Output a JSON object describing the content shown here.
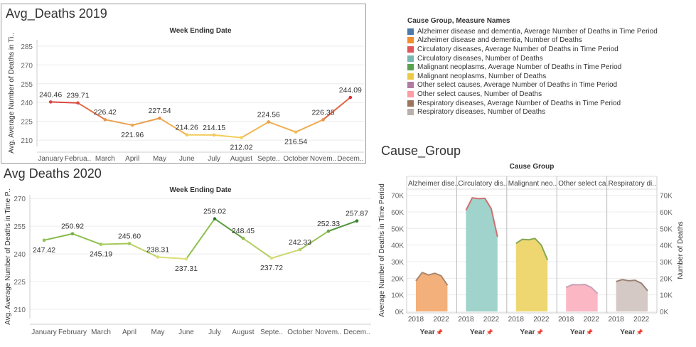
{
  "colors": {
    "text": "#333333",
    "axis": "#888888",
    "grid": "#ececec",
    "panel_border": "#999999"
  },
  "chart_data": [
    {
      "type": "line",
      "title": "Avg_Deaths 2019",
      "header": "Week Ending Date",
      "ylabel": "Avg. Average Number of Deaths in Ti..",
      "ylim": [
        205,
        290
      ],
      "yticks": [
        210,
        225,
        240,
        255,
        270,
        285
      ],
      "categories": [
        "January",
        "Februa..",
        "March",
        "April",
        "May",
        "June",
        "July",
        "August",
        "Septe..",
        "October",
        "Novem..",
        "Decem.."
      ],
      "values": [
        240.46,
        239.71,
        226.42,
        221.96,
        227.54,
        214.26,
        214.15,
        212.02,
        224.56,
        216.54,
        226.35,
        244.09
      ],
      "labels": [
        "240.46",
        "239.71",
        "226.42",
        "221.96",
        "227.54",
        "214.26",
        "214.15",
        "212.02",
        "224.56",
        "216.54",
        "226.35",
        "244.09"
      ],
      "color_low": "#f5d25a",
      "color_mid": "#e8904b",
      "color_high": "#d6303c"
    },
    {
      "type": "line",
      "title": "Avg Deaths 2020",
      "header": "Week Ending Date",
      "ylabel": "Avg. Average Number of Deaths in Time P..",
      "ylim": [
        205,
        272
      ],
      "yticks": [
        210,
        225,
        240,
        255,
        270
      ],
      "categories": [
        "January",
        "February",
        "March",
        "April",
        "May",
        "June",
        "July",
        "August",
        "Septe..",
        "October",
        "Novem..",
        "Decem.."
      ],
      "values": [
        247.42,
        250.92,
        245.19,
        245.6,
        238.31,
        237.31,
        259.02,
        248.45,
        237.72,
        242.33,
        252.33,
        257.87
      ],
      "labels": [
        "247.42",
        "250.92",
        "245.19",
        "245.60",
        "238.31",
        "237.31",
        "259.02",
        "248.45",
        "237.72",
        "242.33",
        "252.33",
        "257.87"
      ],
      "color_low": "#dfe07a",
      "color_mid": "#8ec04e",
      "color_high": "#2d7a30"
    },
    {
      "type": "area",
      "title": "Cause_Group",
      "header": "Cause Group",
      "ylabel_left": "Average Number of Deaths in Time Period",
      "ylabel_right": "Number of Deaths",
      "ylim": [
        0,
        72000
      ],
      "yticks": [
        0,
        10000,
        20000,
        30000,
        40000,
        50000,
        60000,
        70000
      ],
      "ytick_labels": [
        "0K",
        "10K",
        "20K",
        "30K",
        "40K",
        "50K",
        "60K",
        "70K"
      ],
      "x": [
        2018,
        2019,
        2020,
        2021,
        2022,
        2023
      ],
      "xtick_labels": [
        "2018",
        "2022"
      ],
      "xlabel": "Year",
      "pin_icon": "📌",
      "panels": [
        {
          "name": "Alzheimer dise..",
          "fill": "#f4b07a",
          "line": "#a98872",
          "values": [
            18500,
            23500,
            22000,
            23000,
            21500,
            15800
          ]
        },
        {
          "name": "Circulatory dis..",
          "fill": "#9fd3cc",
          "line": "#d06f6f",
          "values": [
            61000,
            68500,
            68000,
            68200,
            62000,
            45000
          ]
        },
        {
          "name": "Malignant neo..",
          "fill": "#eed771",
          "line": "#84a853",
          "values": [
            41000,
            43500,
            43200,
            44000,
            40000,
            31000
          ]
        },
        {
          "name": "Other select ca..",
          "fill": "#fbb7c4",
          "line": "#c8a1b6",
          "values": [
            14500,
            16200,
            16000,
            16300,
            14500,
            10800
          ]
        },
        {
          "name": "Respiratory di..",
          "fill": "#d5c9c5",
          "line": "#9b8174",
          "values": [
            18000,
            19200,
            18500,
            18800,
            17000,
            12500
          ]
        }
      ]
    }
  ],
  "legend": {
    "title": "Cause Group, Measure Names",
    "items": [
      {
        "label": "Alzheimer disease and dementia, Average Number of Deaths in Time Period",
        "color": "#4e79a7"
      },
      {
        "label": "Alzheimer disease and dementia, Number of Deaths",
        "color": "#f28e2b"
      },
      {
        "label": "Circulatory diseases, Average Number of Deaths in Time Period",
        "color": "#e15759"
      },
      {
        "label": "Circulatory diseases, Number of Deaths",
        "color": "#76b7b2"
      },
      {
        "label": "Malignant neoplasms, Average Number of Deaths in Time Period",
        "color": "#59a14f"
      },
      {
        "label": "Malignant neoplasms, Number of Deaths",
        "color": "#edc948"
      },
      {
        "label": "Other select causes, Average Number of Deaths in Time Period",
        "color": "#b07aa1"
      },
      {
        "label": "Other select causes, Number of Deaths",
        "color": "#ff9da7"
      },
      {
        "label": "Respiratory diseases, Average Number of Deaths in Time Period",
        "color": "#9c755f"
      },
      {
        "label": "Respiratory diseases, Number of Deaths",
        "color": "#bab0ac"
      }
    ]
  }
}
